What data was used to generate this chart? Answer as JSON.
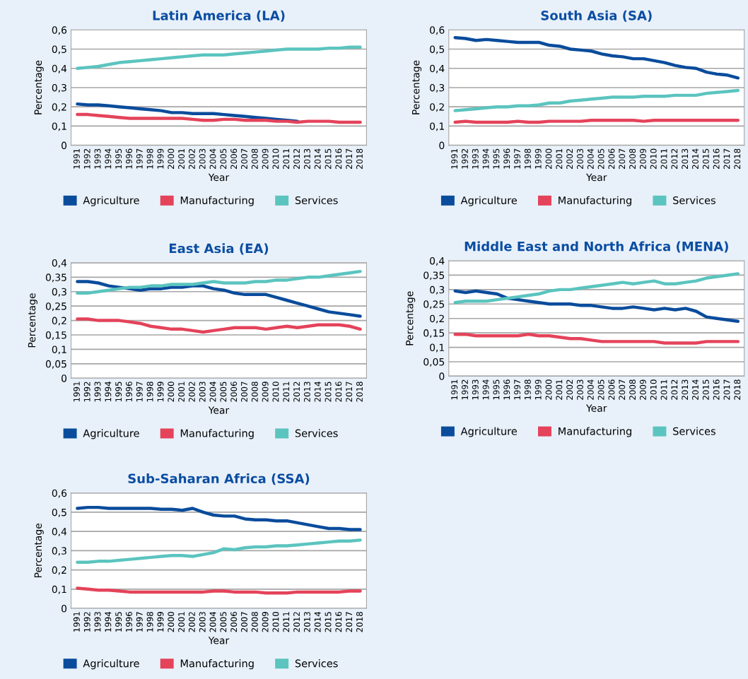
{
  "chart_data": [
    {
      "type": "line",
      "title": "Latin America (LA)",
      "xlabel": "Year",
      "ylabel": "Percentage",
      "grid": "y",
      "legend": "bottom",
      "marker": "none",
      "line_style": "solid",
      "categories": [
        "1991",
        "1992",
        "1993",
        "1994",
        "1995",
        "1996",
        "1997",
        "1998",
        "1999",
        "2000",
        "2001",
        "2002",
        "2003",
        "2004",
        "2005",
        "2006",
        "2007",
        "2008",
        "2009",
        "2010",
        "2011",
        "2012",
        "2013",
        "2014",
        "2015",
        "2016",
        "2017",
        "2018"
      ],
      "ylim": [
        0,
        0.6
      ],
      "yticks": [
        0,
        {
          "value": 0.1,
          "label": "0,1"
        },
        {
          "value": 0.2,
          "label": "0,2"
        },
        {
          "value": 0.3,
          "label": "0,3"
        },
        {
          "value": 0.4,
          "label": "0,4"
        },
        {
          "value": 0.5,
          "label": "0,5"
        },
        {
          "value": 0.6,
          "label": "0,6"
        }
      ],
      "series": [
        {
          "name": "Agriculture",
          "color": "#0a4c9c",
          "values": [
            0.215,
            0.21,
            0.21,
            0.205,
            0.2,
            0.195,
            0.19,
            0.185,
            0.18,
            0.17,
            0.17,
            0.165,
            0.165,
            0.165,
            0.16,
            0.155,
            0.15,
            0.145,
            0.14,
            0.135,
            0.13,
            0.125,
            null,
            null,
            null,
            null,
            null,
            null
          ]
        },
        {
          "name": "Manufacturing",
          "color": "#e4435a",
          "values": [
            0.16,
            0.16,
            0.155,
            0.15,
            0.145,
            0.14,
            0.14,
            0.14,
            0.14,
            0.14,
            0.14,
            0.135,
            0.13,
            0.13,
            0.135,
            0.135,
            0.13,
            0.13,
            0.13,
            0.125,
            0.125,
            0.12,
            0.125,
            0.125,
            0.125,
            0.12,
            0.12,
            0.12
          ]
        },
        {
          "name": "Services",
          "color": "#5bc4bf",
          "values": [
            0.4,
            0.405,
            0.41,
            0.42,
            0.43,
            0.435,
            0.44,
            0.445,
            0.45,
            0.455,
            0.46,
            0.465,
            0.47,
            0.47,
            0.47,
            0.475,
            0.48,
            0.485,
            0.49,
            0.495,
            0.5,
            0.5,
            0.5,
            0.5,
            0.505,
            0.505,
            0.51,
            0.51
          ]
        }
      ]
    },
    {
      "type": "line",
      "title": "South Asia (SA)",
      "xlabel": "Year",
      "ylabel": "Percentage",
      "grid": "y",
      "legend": "bottom",
      "marker": "none",
      "line_style": "solid",
      "categories": [
        "1991",
        "1992",
        "1993",
        "1994",
        "1995",
        "1996",
        "1997",
        "1998",
        "1999",
        "2000",
        "2001",
        "2002",
        "2003",
        "2004",
        "2005",
        "2006",
        "2007",
        "2008",
        "2009",
        "2010",
        "2011",
        "2012",
        "2013",
        "2014",
        "2015",
        "2016",
        "2017",
        "2018"
      ],
      "ylim": [
        0,
        0.6
      ],
      "yticks": [
        0,
        {
          "value": 0.1,
          "label": "0,1"
        },
        {
          "value": 0.2,
          "label": "0,2"
        },
        {
          "value": 0.3,
          "label": "0,3"
        },
        {
          "value": 0.4,
          "label": "0,4"
        },
        {
          "value": 0.5,
          "label": "0,5"
        },
        {
          "value": 0.6,
          "label": "0,6"
        }
      ],
      "series": [
        {
          "name": "Agriculture",
          "color": "#0a4c9c",
          "values": [
            0.56,
            0.555,
            0.545,
            0.55,
            0.545,
            0.54,
            0.535,
            0.535,
            0.535,
            0.52,
            0.515,
            0.5,
            0.495,
            0.49,
            0.475,
            0.465,
            0.46,
            0.45,
            0.45,
            0.44,
            0.43,
            0.415,
            0.405,
            0.4,
            0.38,
            0.37,
            0.365,
            0.35
          ]
        },
        {
          "name": "Manufacturing",
          "color": "#e4435a",
          "values": [
            0.12,
            0.125,
            0.12,
            0.12,
            0.12,
            0.12,
            0.125,
            0.12,
            0.12,
            0.125,
            0.125,
            0.125,
            0.125,
            0.13,
            0.13,
            0.13,
            0.13,
            0.13,
            0.125,
            0.13,
            0.13,
            0.13,
            0.13,
            0.13,
            0.13,
            0.13,
            0.13,
            0.13
          ]
        },
        {
          "name": "Services",
          "color": "#5bc4bf",
          "values": [
            0.18,
            0.185,
            0.19,
            0.195,
            0.2,
            0.2,
            0.205,
            0.205,
            0.21,
            0.22,
            0.22,
            0.23,
            0.235,
            0.24,
            0.245,
            0.25,
            0.25,
            0.25,
            0.255,
            0.255,
            0.255,
            0.26,
            0.26,
            0.26,
            0.27,
            0.275,
            0.28,
            0.285
          ]
        }
      ]
    },
    {
      "type": "line",
      "title": "East Asia (EA)",
      "xlabel": "Year",
      "ylabel": "Percentage",
      "grid": "y",
      "legend": "bottom",
      "marker": "none",
      "line_style": "solid",
      "categories": [
        "1991",
        "1992",
        "1993",
        "1994",
        "1995",
        "1996",
        "1997",
        "1998",
        "1999",
        "2000",
        "2001",
        "2002",
        "2003",
        "2004",
        "2005",
        "2006",
        "2007",
        "2008",
        "2009",
        "2010",
        "2011",
        "2012",
        "2013",
        "2014",
        "2015",
        "2016",
        "2017",
        "2018"
      ],
      "ylim": [
        0,
        0.4
      ],
      "yticks": [
        0,
        {
          "value": 0.05,
          "label": "0,05"
        },
        {
          "value": 0.1,
          "label": "0,1"
        },
        {
          "value": 0.15,
          "label": "0,15"
        },
        {
          "value": 0.2,
          "label": "0,2"
        },
        {
          "value": 0.25,
          "label": "0,25"
        },
        {
          "value": 0.3,
          "label": "0,3"
        },
        {
          "value": 0.35,
          "label": "0,35"
        },
        {
          "value": 0.4,
          "label": "0,4"
        }
      ],
      "series": [
        {
          "name": "Agriculture",
          "color": "#0a4c9c",
          "values": [
            0.335,
            0.335,
            0.33,
            0.32,
            0.315,
            0.31,
            0.305,
            0.31,
            0.31,
            0.315,
            0.315,
            0.32,
            0.32,
            0.31,
            0.305,
            0.295,
            0.29,
            0.29,
            0.29,
            0.28,
            0.27,
            0.26,
            0.25,
            0.24,
            0.23,
            0.225,
            0.22,
            0.215
          ]
        },
        {
          "name": "Manufacturing",
          "color": "#e4435a",
          "values": [
            0.205,
            0.205,
            0.2,
            0.2,
            0.2,
            0.195,
            0.19,
            0.18,
            0.175,
            0.17,
            0.17,
            0.165,
            0.16,
            0.165,
            0.17,
            0.175,
            0.175,
            0.175,
            0.17,
            0.175,
            0.18,
            0.175,
            0.18,
            0.185,
            0.185,
            0.185,
            0.18,
            0.17
          ]
        },
        {
          "name": "Services",
          "color": "#5bc4bf",
          "values": [
            0.295,
            0.295,
            0.3,
            0.305,
            0.31,
            0.315,
            0.315,
            0.32,
            0.32,
            0.325,
            0.325,
            0.325,
            0.33,
            0.335,
            0.33,
            0.33,
            0.33,
            0.335,
            0.335,
            0.34,
            0.34,
            0.345,
            0.35,
            0.35,
            0.355,
            0.36,
            0.365,
            0.37
          ]
        }
      ]
    },
    {
      "type": "line",
      "title": "Middle East and North Africa (MENA)",
      "xlabel": "Year",
      "ylabel": "Percentage",
      "grid": "y",
      "legend": "bottom",
      "marker": "none",
      "line_style": "solid",
      "categories": [
        "1991",
        "1992",
        "1993",
        "1994",
        "1995",
        "1996",
        "1997",
        "1998",
        "1999",
        "2000",
        "2001",
        "2002",
        "2003",
        "2004",
        "2005",
        "2006",
        "2007",
        "2008",
        "2009",
        "2010",
        "2011",
        "2012",
        "2013",
        "2014",
        "2015",
        "2016",
        "2017",
        "2018"
      ],
      "ylim": [
        0,
        0.4
      ],
      "yticks": [
        0,
        {
          "value": 0.05,
          "label": "0,05"
        },
        {
          "value": 0.1,
          "label": "0,1"
        },
        {
          "value": 0.15,
          "label": "0,15"
        },
        {
          "value": 0.2,
          "label": "0,2"
        },
        {
          "value": 0.25,
          "label": "0,25"
        },
        {
          "value": 0.3,
          "label": "0,3"
        },
        {
          "value": 0.35,
          "label": "0,35"
        },
        {
          "value": 0.4,
          "label": "0,4"
        }
      ],
      "series": [
        {
          "name": "Agriculture",
          "color": "#0a4c9c",
          "values": [
            0.295,
            0.29,
            0.295,
            0.29,
            0.285,
            0.27,
            0.265,
            0.26,
            0.255,
            0.25,
            0.25,
            0.25,
            0.245,
            0.245,
            0.24,
            0.235,
            0.235,
            0.24,
            0.235,
            0.23,
            0.235,
            0.23,
            0.235,
            0.225,
            0.205,
            0.2,
            0.195,
            0.19
          ]
        },
        {
          "name": "Manufacturing",
          "color": "#e4435a",
          "values": [
            0.145,
            0.145,
            0.14,
            0.14,
            0.14,
            0.14,
            0.14,
            0.145,
            0.14,
            0.14,
            0.135,
            0.13,
            0.13,
            0.125,
            0.12,
            0.12,
            0.12,
            0.12,
            0.12,
            0.12,
            0.115,
            0.115,
            0.115,
            0.115,
            0.12,
            0.12,
            0.12,
            0.12
          ]
        },
        {
          "name": "Services",
          "color": "#5bc4bf",
          "values": [
            0.255,
            0.26,
            0.26,
            0.26,
            0.265,
            0.27,
            0.275,
            0.28,
            0.285,
            0.295,
            0.3,
            0.3,
            0.305,
            0.31,
            0.315,
            0.32,
            0.325,
            0.32,
            0.325,
            0.33,
            0.32,
            0.32,
            0.325,
            0.33,
            0.34,
            0.345,
            0.35,
            0.355
          ]
        }
      ]
    },
    {
      "type": "line",
      "title": "Sub-Saharan Africa (SSA)",
      "xlabel": "Year",
      "ylabel": "Percentage",
      "grid": "y",
      "legend": "bottom",
      "marker": "none",
      "line_style": "solid",
      "categories": [
        "1991",
        "1992",
        "1993",
        "1994",
        "1995",
        "1996",
        "1997",
        "1998",
        "1999",
        "2000",
        "2001",
        "2002",
        "2003",
        "2004",
        "2005",
        "2006",
        "2007",
        "2008",
        "2009",
        "2010",
        "2011",
        "2012",
        "2013",
        "2014",
        "2015",
        "2016",
        "2017",
        "2018"
      ],
      "ylim": [
        0,
        0.6
      ],
      "yticks": [
        0,
        {
          "value": 0.1,
          "label": "0,1"
        },
        {
          "value": 0.2,
          "label": "0,2"
        },
        {
          "value": 0.3,
          "label": "0,3"
        },
        {
          "value": 0.4,
          "label": "0,4"
        },
        {
          "value": 0.5,
          "label": "0,5"
        },
        {
          "value": 0.6,
          "label": "0,6"
        }
      ],
      "series": [
        {
          "name": "Agriculture",
          "color": "#0a4c9c",
          "values": [
            0.52,
            0.525,
            0.525,
            0.52,
            0.52,
            0.52,
            0.52,
            0.52,
            0.515,
            0.515,
            0.51,
            0.52,
            0.5,
            0.485,
            0.48,
            0.48,
            0.465,
            0.46,
            0.46,
            0.455,
            0.455,
            0.445,
            0.435,
            0.425,
            0.415,
            0.415,
            0.41,
            0.41
          ]
        },
        {
          "name": "Manufacturing",
          "color": "#e4435a",
          "values": [
            0.105,
            0.1,
            0.095,
            0.095,
            0.09,
            0.085,
            0.085,
            0.085,
            0.085,
            0.085,
            0.085,
            0.085,
            0.085,
            0.09,
            0.09,
            0.085,
            0.085,
            0.085,
            0.08,
            0.08,
            0.08,
            0.085,
            0.085,
            0.085,
            0.085,
            0.085,
            0.09,
            0.09
          ]
        },
        {
          "name": "Services",
          "color": "#5bc4bf",
          "values": [
            0.24,
            0.24,
            0.245,
            0.245,
            0.25,
            0.255,
            0.26,
            0.265,
            0.27,
            0.275,
            0.275,
            0.27,
            0.28,
            0.29,
            0.31,
            0.305,
            0.315,
            0.32,
            0.32,
            0.325,
            0.325,
            0.33,
            0.335,
            0.34,
            0.345,
            0.35,
            0.35,
            0.355
          ]
        }
      ]
    }
  ]
}
